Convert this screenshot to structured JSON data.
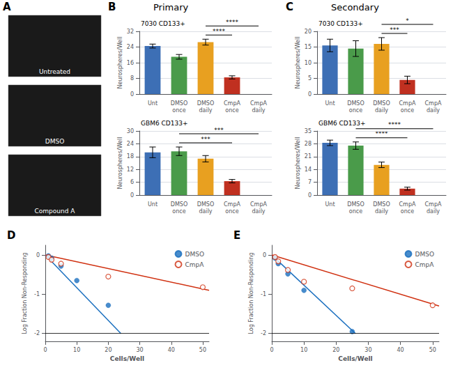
{
  "chart_data": [
    {
      "type": "images",
      "panel_label": "A",
      "annotations": [
        "Untreated",
        "DMSO",
        "Compound A"
      ]
    },
    {
      "type": "bar",
      "panel_label": "B",
      "title": "Primary",
      "subtitle": "7030 CD133+",
      "categories": [
        "Unt",
        "DMSO\nonce",
        "DMSO\ndaily",
        "CmpA\nonce",
        "CmpA\ndaily"
      ],
      "values": [
        24.5,
        19.0,
        26.5,
        8.5,
        0.0
      ],
      "errors": [
        1.0,
        1.2,
        1.5,
        0.8,
        0.0
      ],
      "colors": [
        "#3D6FB5",
        "#4A9B4A",
        "#E8A020",
        "#C03020",
        "#C03020"
      ],
      "ylabel": "Neurospheres/Well",
      "ylim": [
        0,
        32
      ],
      "yticks": [
        0,
        8,
        16,
        24,
        32
      ],
      "grid": true,
      "annotations": [
        {
          "text": "****",
          "from": "DMSO\ndaily",
          "to": "CmpA\nonce"
        },
        {
          "text": "****",
          "from": "DMSO\ndaily",
          "to": "CmpA\ndaily"
        }
      ]
    },
    {
      "type": "bar",
      "subtitle": "GBM6 CD133+",
      "categories": [
        "Unt",
        "DMSO\nonce",
        "DMSO\ndaily",
        "CmpA\nonce",
        "CmpA\ndaily"
      ],
      "values": [
        20.0,
        20.5,
        17.0,
        6.5,
        0.0
      ],
      "errors": [
        2.5,
        2.0,
        1.5,
        0.8,
        0.0
      ],
      "colors": [
        "#3D6FB5",
        "#4A9B4A",
        "#E8A020",
        "#C03020",
        "#C03020"
      ],
      "ylabel": "Neurospheres/Well",
      "ylim": [
        0,
        30
      ],
      "yticks": [
        0,
        6,
        12,
        18,
        24,
        30
      ],
      "grid": true,
      "annotations": [
        {
          "text": "***",
          "from": "DMSO\nonce",
          "to": "CmpA\nonce"
        },
        {
          "text": "***",
          "from": "DMSO\nonce",
          "to": "CmpA\ndaily"
        }
      ]
    },
    {
      "type": "bar",
      "panel_label": "C",
      "title": "Secondary",
      "subtitle": "7030 CD133+",
      "categories": [
        "Unt",
        "DMSO\nonce",
        "DMSO\ndaily",
        "CmpA\nonce",
        "CmpA\ndaily"
      ],
      "values": [
        15.5,
        14.5,
        16.0,
        4.5,
        0.0
      ],
      "errors": [
        2.0,
        2.5,
        2.0,
        1.2,
        0.0
      ],
      "colors": [
        "#3D6FB5",
        "#4A9B4A",
        "#E8A020",
        "#C03020",
        "#C03020"
      ],
      "ylabel": "Neurospheres/Well",
      "ylim": [
        0,
        20
      ],
      "yticks": [
        0,
        5,
        10,
        15,
        20
      ],
      "grid": true,
      "annotations": [
        {
          "text": "***",
          "from": "DMSO\ndaily",
          "to": "CmpA\nonce"
        },
        {
          "text": "*",
          "from": "DMSO\ndaily",
          "to": "CmpA\ndaily"
        }
      ]
    },
    {
      "type": "bar",
      "subtitle": "GBM6 CD133+",
      "categories": [
        "Unt",
        "DMSO\nonce",
        "DMSO\ndaily",
        "CmpA\nonce",
        "CmpA\ndaily"
      ],
      "values": [
        28.5,
        27.0,
        16.5,
        3.5,
        0.0
      ],
      "errors": [
        1.5,
        2.0,
        1.5,
        0.8,
        0.0
      ],
      "colors": [
        "#3D6FB5",
        "#4A9B4A",
        "#E8A020",
        "#C03020",
        "#C03020"
      ],
      "ylabel": "Neurospheres/Well",
      "ylim": [
        0,
        35
      ],
      "yticks": [
        0,
        7,
        14,
        21,
        28,
        35
      ],
      "grid": true,
      "annotations": [
        {
          "text": "****",
          "from": "DMSO\nonce",
          "to": "CmpA\nonce"
        },
        {
          "text": "****",
          "from": "DMSO\nonce",
          "to": "CmpA\ndaily"
        }
      ]
    },
    {
      "type": "scatter",
      "panel_label": "D",
      "xlabel": "Cells/Well",
      "ylabel": "Log Fraction Non-Responding",
      "xlim": [
        0,
        52
      ],
      "xticks": [
        0,
        10,
        20,
        30,
        40,
        50
      ],
      "ylim": [
        -2.2,
        0.25
      ],
      "yticks": [
        -2,
        -1,
        0
      ],
      "grid": false,
      "legend": "upper right",
      "hlines": [
        -2
      ],
      "series": [
        {
          "type": "line",
          "color": "#1A6FBF",
          "line_style": "solid",
          "x": [
            0,
            24
          ],
          "values": [
            0.0,
            -2.0
          ]
        },
        {
          "type": "line",
          "color": "#D03010",
          "line_style": "solid",
          "x": [
            0,
            52
          ],
          "values": [
            0.0,
            -0.9
          ]
        },
        {
          "name": "DMSO",
          "type": "scatter",
          "color": "#1A6FBF",
          "marker": "circle",
          "x": [
            1,
            2,
            5,
            10,
            20
          ],
          "values": [
            -0.02,
            -0.08,
            -0.28,
            -0.65,
            -1.28
          ]
        },
        {
          "name": "CmpA",
          "type": "scatter",
          "color": "#D03010",
          "marker": "open_circle",
          "x": [
            1,
            2,
            5,
            20,
            50
          ],
          "values": [
            -0.05,
            -0.12,
            -0.22,
            -0.55,
            -0.82
          ]
        }
      ]
    },
    {
      "type": "scatter",
      "panel_label": "E",
      "xlabel": "Cells/Well",
      "ylabel": "Log Fraction Non-Responding",
      "xlim": [
        0,
        52
      ],
      "xticks": [
        0,
        10,
        20,
        30,
        40,
        50
      ],
      "ylim": [
        -2.2,
        0.25
      ],
      "yticks": [
        -2,
        -1,
        0
      ],
      "grid": false,
      "legend": "upper right",
      "hlines": [
        -2
      ],
      "series": [
        {
          "type": "line",
          "color": "#1A6FBF",
          "line_style": "solid",
          "x": [
            0,
            26
          ],
          "values": [
            0.0,
            -2.0
          ]
        },
        {
          "type": "line",
          "color": "#D03010",
          "line_style": "solid",
          "x": [
            0,
            52
          ],
          "values": [
            0.0,
            -1.3
          ]
        },
        {
          "name": "DMSO",
          "type": "scatter",
          "color": "#1A6FBF",
          "marker": "circle",
          "x": [
            1,
            2,
            5,
            10,
            25
          ],
          "values": [
            -0.08,
            -0.22,
            -0.48,
            -0.9,
            -1.95
          ]
        },
        {
          "name": "CmpA",
          "type": "scatter",
          "color": "#D03010",
          "marker": "open_circle",
          "x": [
            1,
            2,
            5,
            10,
            25,
            50
          ],
          "values": [
            -0.05,
            -0.16,
            -0.38,
            -0.68,
            -0.85,
            -1.28
          ]
        }
      ]
    }
  ]
}
